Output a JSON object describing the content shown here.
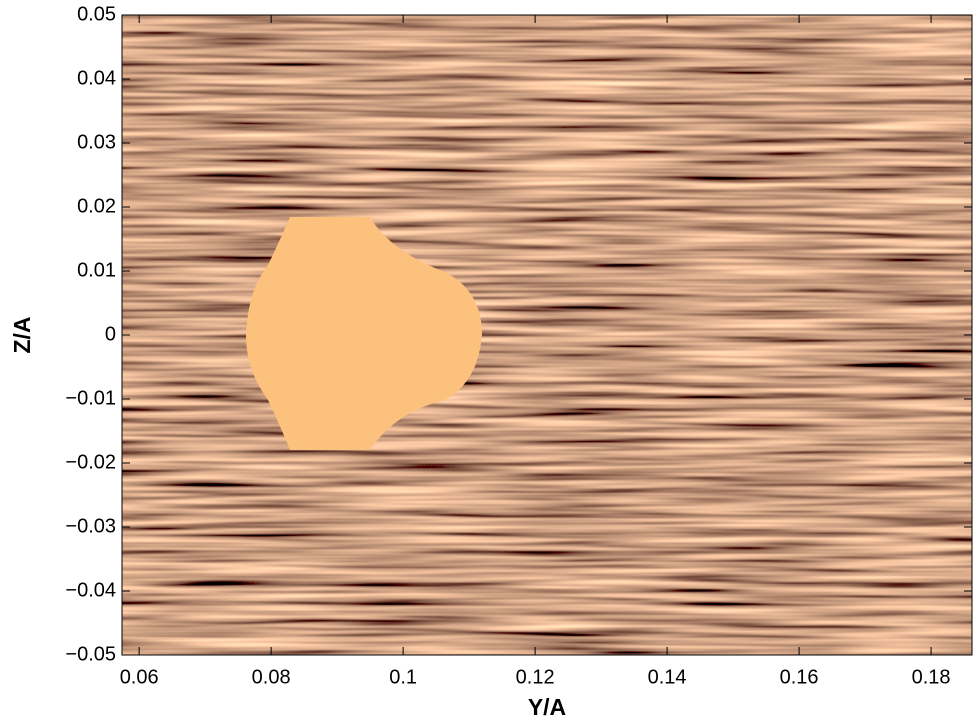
{
  "chart_data": {
    "type": "flow",
    "xlabel": "Y/A",
    "ylabel": "Z/A",
    "xlim": [
      0.0574,
      0.1862
    ],
    "ylim": [
      -0.05,
      0.05
    ],
    "xticks": [
      0.06,
      0.08,
      0.1,
      0.12,
      0.14,
      0.16,
      0.18
    ],
    "yticks": [
      {
        "value": -0.05,
        "label": "−0.05"
      },
      {
        "value": -0.04,
        "label": "−0.04"
      },
      {
        "value": -0.03,
        "label": "−0.03"
      },
      {
        "value": -0.02,
        "label": "−0.02"
      },
      {
        "value": -0.01,
        "label": "−0.01"
      },
      0,
      0.01,
      0.02,
      0.03,
      0.04,
      0.05
    ],
    "color": "#fdc17e"
  }
}
